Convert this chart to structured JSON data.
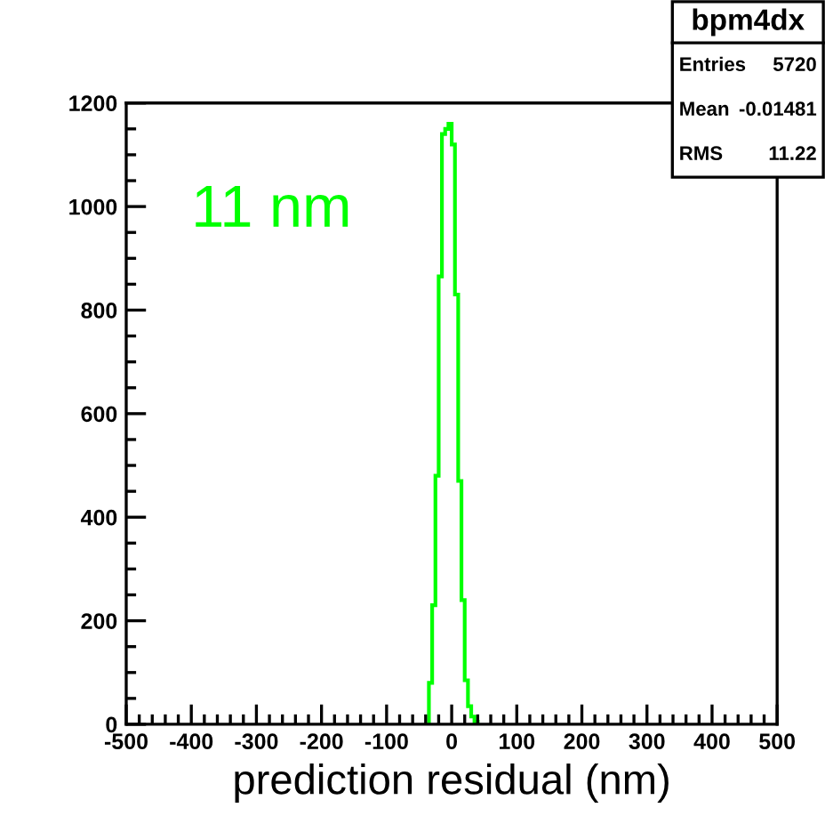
{
  "chart_data": {
    "type": "histogram",
    "xlabel": "prediction residual (nm)",
    "bins": [
      -35,
      -30,
      -25,
      -20,
      -15,
      -10,
      -5,
      0,
      5,
      10,
      15,
      20,
      25,
      30,
      35,
      40
    ],
    "values": [
      80,
      230,
      480,
      865,
      1140,
      1150,
      1160,
      1120,
      830,
      470,
      240,
      85,
      35,
      15,
      5
    ],
    "color": "#00ff00",
    "xlim": [
      -500,
      500
    ],
    "xticks": [
      -500,
      -400,
      -300,
      -200,
      -100,
      0,
      100,
      200,
      300,
      400,
      500
    ],
    "ylim": [
      0,
      1200
    ],
    "yticks": [
      0,
      200,
      400,
      600,
      800,
      1000,
      1200
    ],
    "grid": false,
    "legend": false,
    "annotations": [
      "11 nm",
      "bpm4dx",
      "Entries",
      "5720",
      "Mean",
      "-0.01481",
      "RMS",
      "11.22"
    ]
  }
}
